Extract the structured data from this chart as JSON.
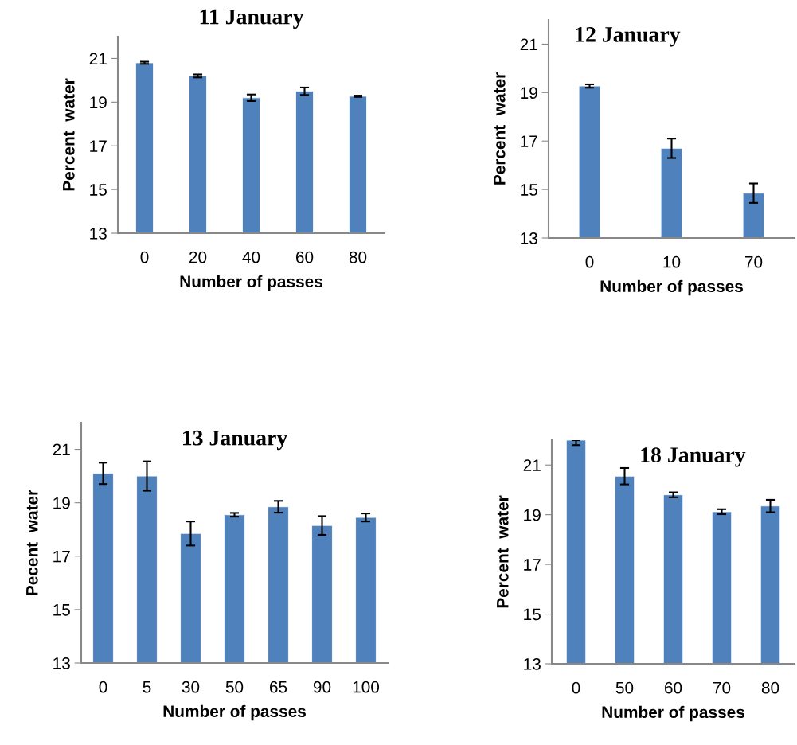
{
  "chart_data": [
    {
      "type": "bar",
      "title": "11 January",
      "xlabel": "Number of passes",
      "ylabel": "Percent  water",
      "categories": [
        "0",
        "20",
        "40",
        "60",
        "80"
      ],
      "values": [
        20.8,
        20.2,
        19.2,
        19.5,
        19.27
      ],
      "errors": [
        0.05,
        0.07,
        0.15,
        0.17,
        0.03
      ],
      "color": "#4f81bd",
      "ylim": [
        13,
        22
      ],
      "yticks": [
        13,
        15,
        17,
        19,
        21
      ],
      "grid": false,
      "legend": false
    },
    {
      "type": "bar",
      "title": "12 January",
      "xlabel": "Number of passes",
      "ylabel": "Percent  water",
      "categories": [
        "0",
        "10",
        "70"
      ],
      "values": [
        19.27,
        16.7,
        14.85
      ],
      "errors": [
        0.07,
        0.4,
        0.4
      ],
      "color": "#4f81bd",
      "ylim": [
        13,
        22
      ],
      "yticks": [
        13,
        15,
        17,
        19,
        21
      ],
      "grid": false,
      "legend": false
    },
    {
      "type": "bar",
      "title": "13 January",
      "xlabel": "Number of passes",
      "ylabel": "Pecent  water",
      "categories": [
        "0",
        "5",
        "30",
        "50",
        "65",
        "90",
        "100"
      ],
      "values": [
        20.1,
        20.0,
        17.85,
        18.55,
        18.85,
        18.15,
        18.45
      ],
      "errors": [
        0.4,
        0.55,
        0.45,
        0.07,
        0.22,
        0.35,
        0.15
      ],
      "color": "#4f81bd",
      "ylim": [
        13,
        22
      ],
      "yticks": [
        13,
        15,
        17,
        19,
        21
      ],
      "grid": false,
      "legend": false
    },
    {
      "type": "bar",
      "title": "18 January",
      "xlabel": "Number of passes",
      "ylabel": "Percent  water",
      "categories": [
        "0",
        "50",
        "60",
        "70",
        "80"
      ],
      "values": [
        22,
        20.55,
        19.8,
        19.12,
        19.35
      ],
      "errors": [
        [
          21.8,
          22
        ],
        0.33,
        0.1,
        0.1,
        0.25
      ],
      "color": "#4f81bd",
      "ylim": [
        13,
        22
      ],
      "yticks": [
        13,
        15,
        17,
        19,
        21
      ],
      "grid": false,
      "legend": false
    }
  ]
}
